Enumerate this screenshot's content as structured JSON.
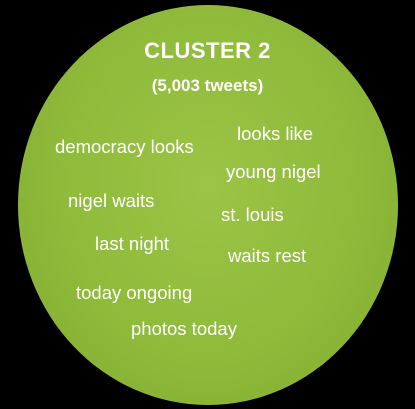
{
  "cluster": {
    "title": "CLUSTER 2",
    "subtitle": "(5,003 tweets)",
    "color": "#8fba3a",
    "phrases": [
      "democracy looks",
      "looks like",
      "young nigel",
      "nigel waits",
      "st. louis",
      "last night",
      "waits rest",
      "today ongoing",
      "photos today"
    ]
  }
}
